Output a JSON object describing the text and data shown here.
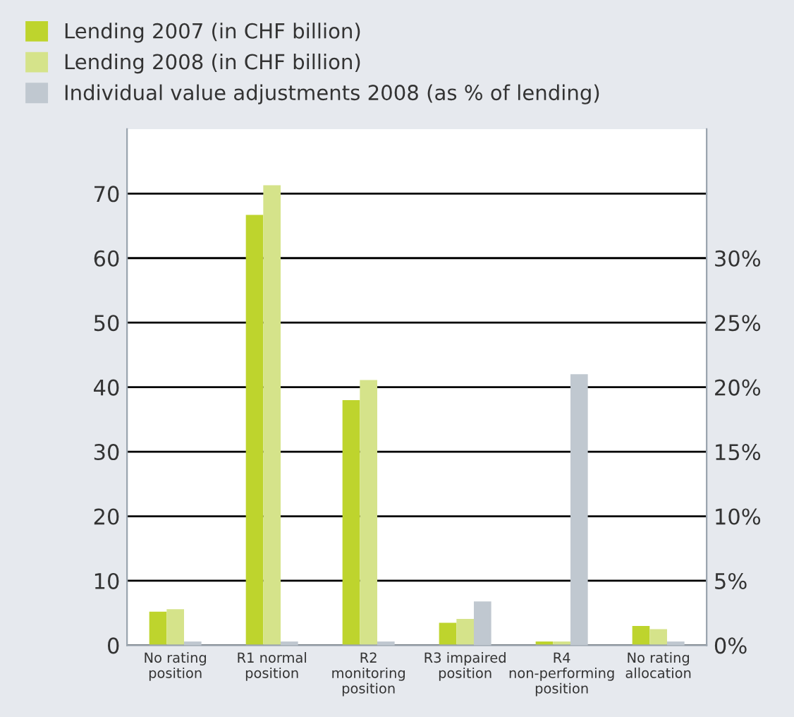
{
  "chart_data": {
    "type": "bar",
    "categories": [
      "No rating position",
      "R1 normal position",
      "R2 monitoring position",
      "R3 impaired position",
      "R4 non-performing position",
      "No rating allocation"
    ],
    "series": [
      {
        "name": "Lending 2007 (in CHF billion)",
        "color": "#bed42d",
        "values": [
          5.2,
          66.7,
          38.0,
          3.5,
          0.6,
          3.0
        ]
      },
      {
        "name": "Lending 2008 (in CHF billion)",
        "color": "#d5e38a",
        "values": [
          5.6,
          71.3,
          41.1,
          4.1,
          0.6,
          2.5
        ]
      },
      {
        "name": "Individual value adjustments 2008 (as % of lending)",
        "color": "#c0c8d0",
        "axis": "y2",
        "values": [
          0.3,
          0.3,
          0.3,
          3.4,
          21.0,
          0.3
        ]
      }
    ],
    "ylim": [
      0,
      80
    ],
    "yticks": [
      0,
      10,
      20,
      30,
      40,
      50,
      60,
      70
    ],
    "y2lim": [
      0,
      40
    ],
    "y2ticks": [
      {
        "value": 0,
        "label": "0%"
      },
      {
        "value": 5,
        "label": "5%"
      },
      {
        "value": 10,
        "label": "10%"
      },
      {
        "value": 15,
        "label": "15%"
      },
      {
        "value": 20,
        "label": "20%"
      },
      {
        "value": 25,
        "label": "25%"
      },
      {
        "value": 30,
        "label": "30%"
      }
    ],
    "grid": "y",
    "legend": "top left"
  }
}
